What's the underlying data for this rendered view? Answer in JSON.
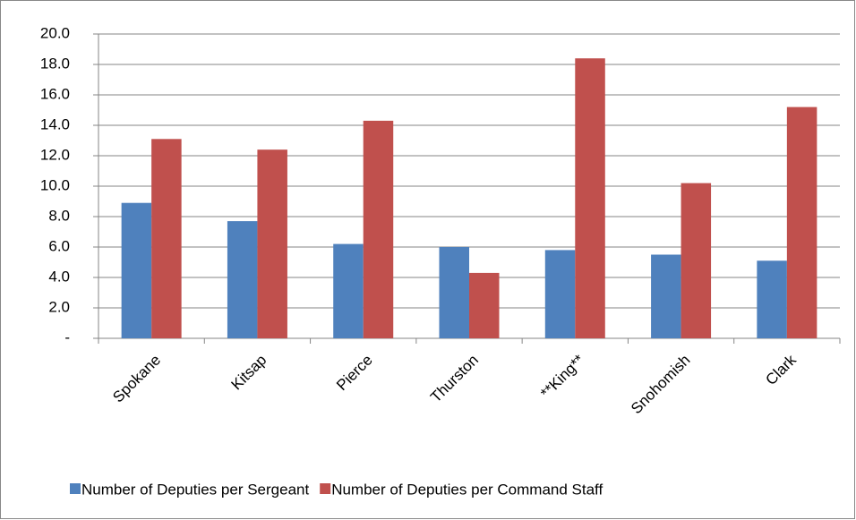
{
  "chart_data": {
    "type": "bar",
    "categories": [
      "Spokane",
      "Kitsap",
      "Pierce",
      "Thurston",
      "**King**",
      "Snohomish",
      "Clark"
    ],
    "series": [
      {
        "name": "Number of Deputies per Sergeant",
        "color": "#4f81bd",
        "values": [
          8.9,
          7.7,
          6.2,
          6.0,
          5.8,
          5.5,
          5.1
        ]
      },
      {
        "name": "Number of Deputies per Command  Staff",
        "color": "#c0504d",
        "values": [
          13.1,
          12.4,
          14.3,
          4.3,
          18.4,
          10.2,
          15.2
        ]
      }
    ],
    "ylim": [
      0,
      20
    ],
    "yticks": [
      {
        "value": 0,
        "label": "-"
      },
      {
        "value": 2,
        "label": "2.0"
      },
      {
        "value": 4,
        "label": "4.0"
      },
      {
        "value": 6,
        "label": "6.0"
      },
      {
        "value": 8,
        "label": "8.0"
      },
      {
        "value": 10,
        "label": "10.0"
      },
      {
        "value": 12,
        "label": "12.0"
      },
      {
        "value": 14,
        "label": "14.0"
      },
      {
        "value": 16,
        "label": "16.0"
      },
      {
        "value": 18,
        "label": "18.0"
      },
      {
        "value": 20,
        "label": "20.0"
      }
    ],
    "grid": true,
    "legend": "bottom"
  }
}
